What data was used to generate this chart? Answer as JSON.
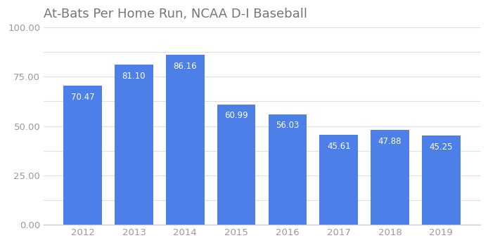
{
  "title": "At-Bats Per Home Run, NCAA D-I Baseball",
  "categories": [
    "2012",
    "2013",
    "2014",
    "2015",
    "2016",
    "2017",
    "2018",
    "2019"
  ],
  "values": [
    70.47,
    81.1,
    86.16,
    60.99,
    56.03,
    45.61,
    47.88,
    45.25
  ],
  "bar_color": "#4d7fe8",
  "background_color": "#ffffff",
  "label_color": "#ffffff",
  "title_color": "#757575",
  "grid_color": "#e0e0e0",
  "ylim": [
    0,
    100
  ],
  "yticks": [
    0.0,
    12.5,
    25.0,
    37.5,
    50.0,
    62.5,
    75.0,
    87.5,
    100.0
  ],
  "ytick_labels": [
    "0.00",
    "",
    "25.00",
    "",
    "50.00",
    "",
    "75.00",
    "",
    "100.00"
  ],
  "title_fontsize": 13,
  "label_fontsize": 8.5,
  "tick_fontsize": 9.5,
  "bar_width": 0.75
}
